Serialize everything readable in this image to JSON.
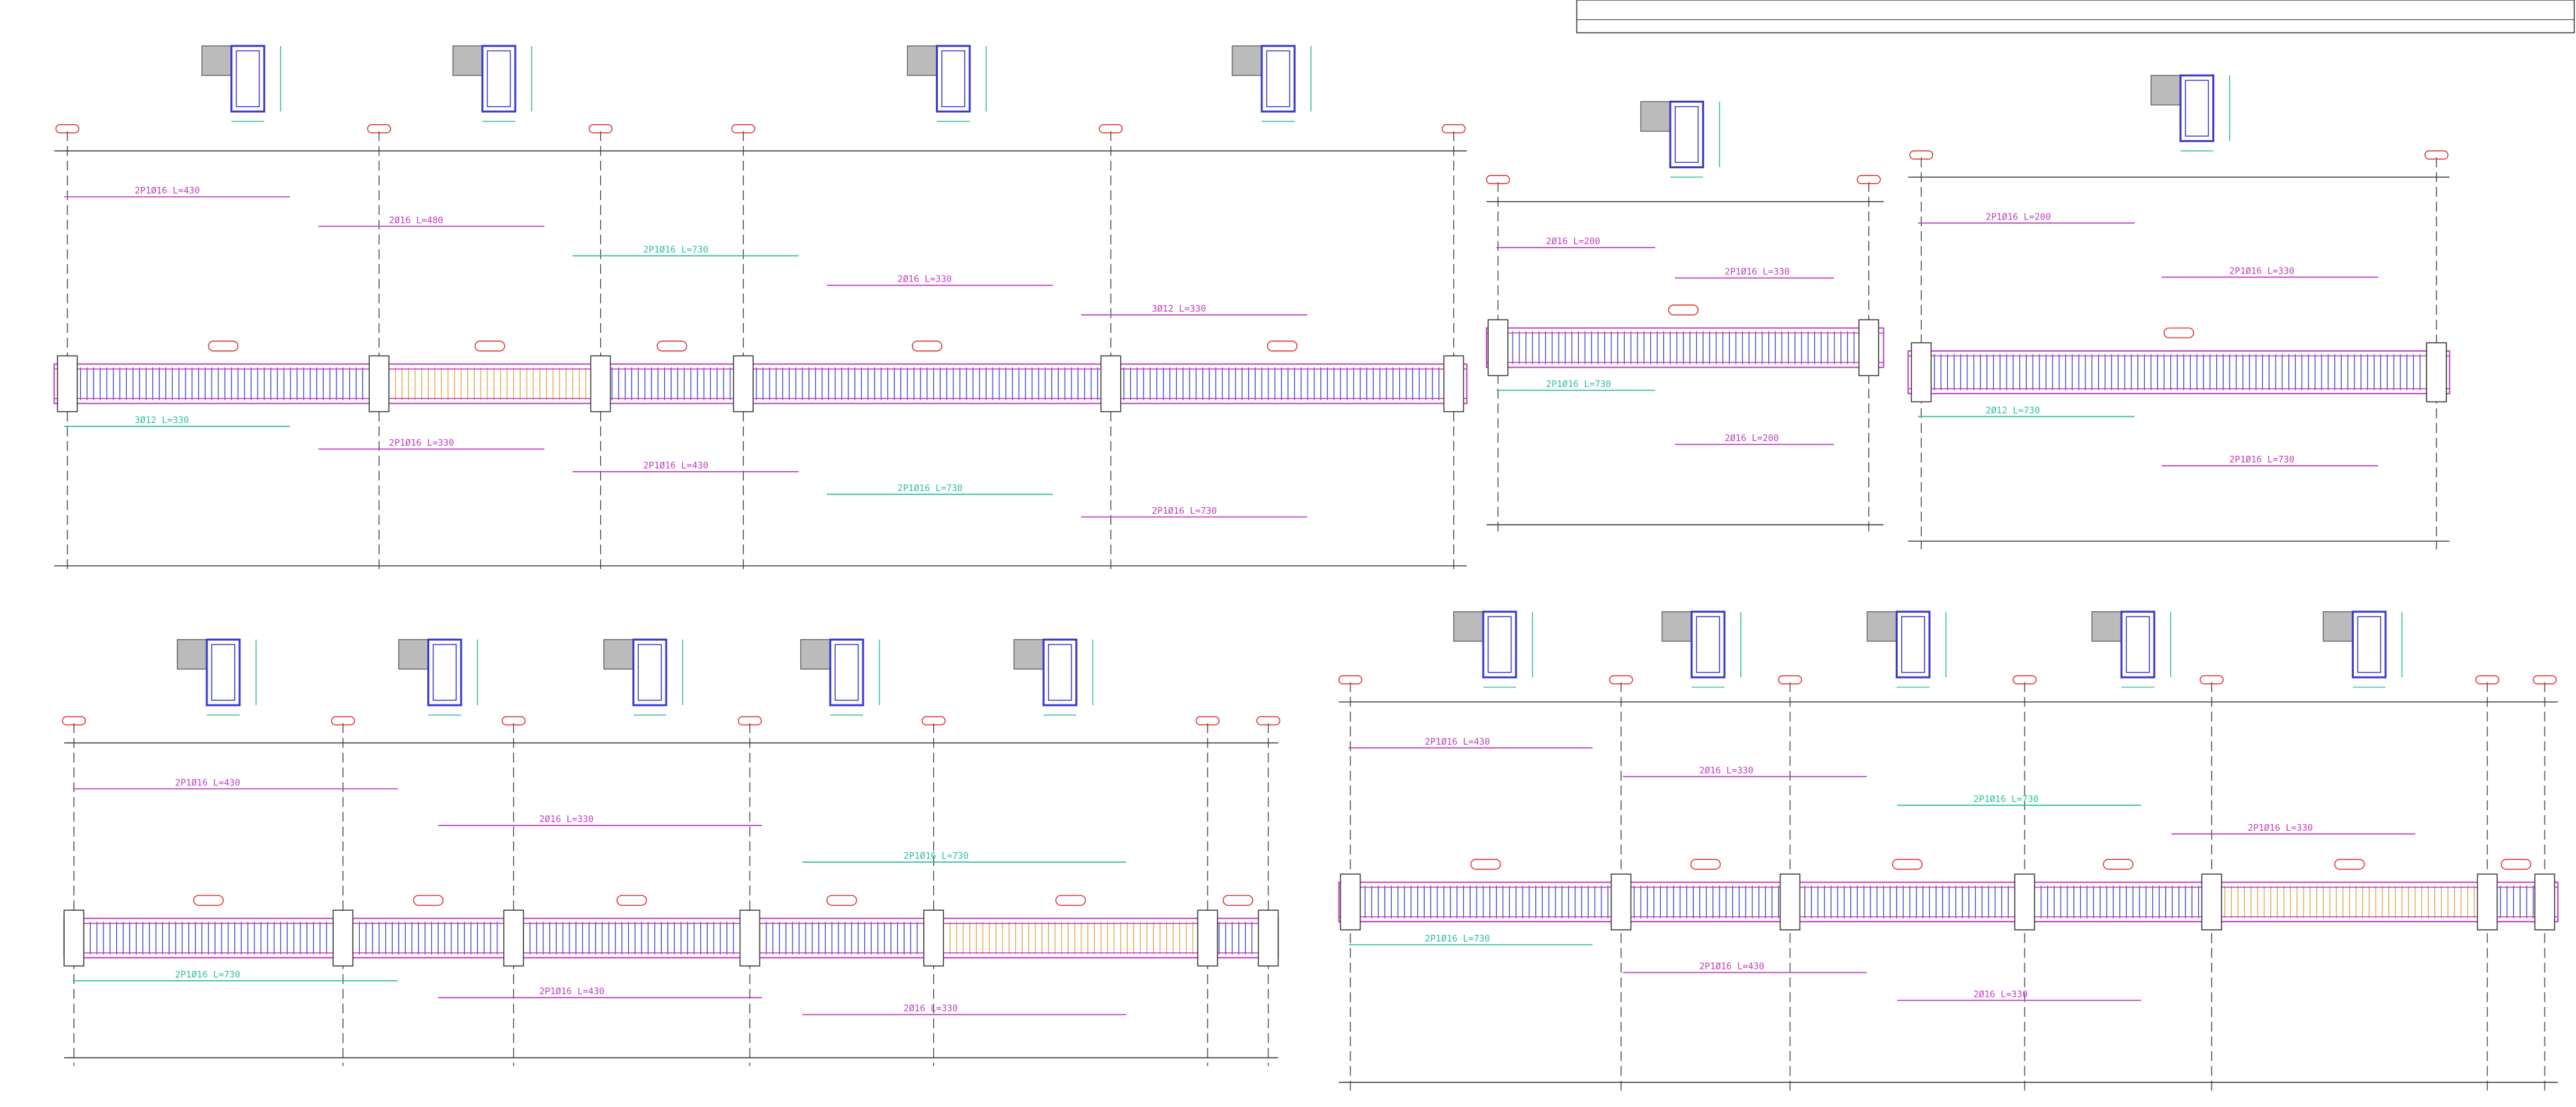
{
  "drawings": [
    {
      "labels": [
        "2P1Ø16 L=430",
        "3Ø12 L=330",
        "2Ø16 L=480",
        "2P1Ø16 L=330",
        "2P1Ø16 L=730",
        "2P1Ø16 L=430",
        "2Ø16 L=330",
        "2P1Ø16 L=730",
        "3Ø12 L=330",
        "2P1Ø16 L=730"
      ]
    },
    {
      "labels": [
        "2Ø16 L=200",
        "2P1Ø16 L=730",
        "2P1Ø16 L=330",
        "2Ø16 L=200"
      ]
    },
    {
      "labels": [
        "2P1Ø16 L=200",
        "2Ø12 L=730",
        "2P1Ø16 L=330",
        "2P1Ø16 L=730"
      ]
    },
    {
      "labels": [
        "2P1Ø16 L=430",
        "2P1Ø16 L=730",
        "2Ø16 L=330",
        "2P1Ø16 L=430",
        "2P1Ø16 L=730",
        "2Ø16 L=330"
      ]
    },
    {
      "labels": [
        "2P1Ø16 L=430",
        "2P1Ø16 L=730",
        "2Ø16 L=330",
        "2P1Ø16 L=430",
        "2P1Ø16 L=730",
        "2Ø16 L=330",
        "2P1Ø16 L=330"
      ]
    }
  ]
}
